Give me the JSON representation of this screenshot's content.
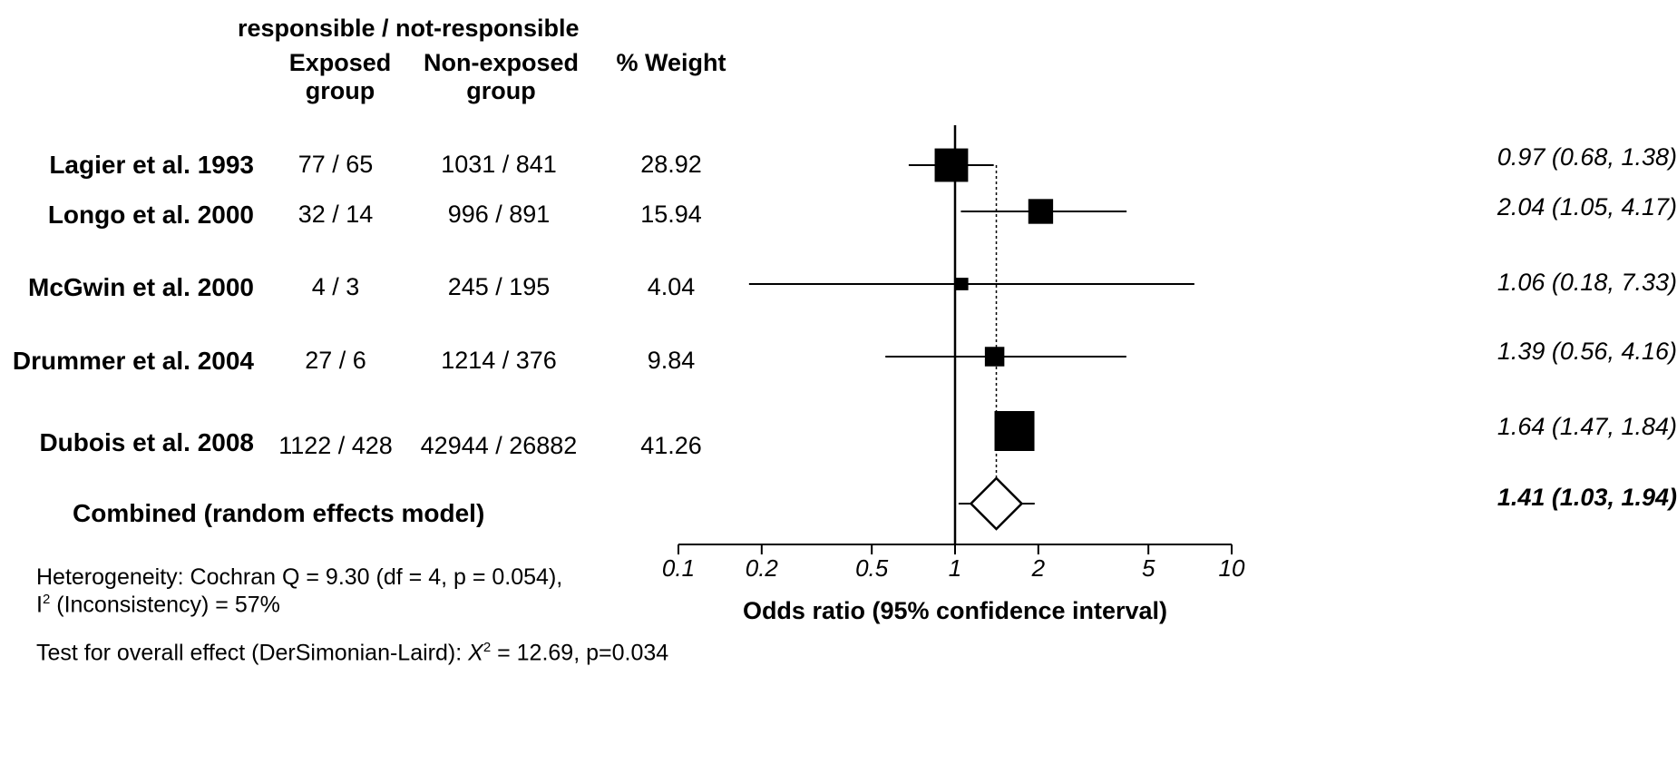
{
  "header": {
    "group_title": "responsible / not-responsible",
    "col_exposed_1": "Exposed",
    "col_exposed_2": "group",
    "col_nonexposed_1": "Non-exposed",
    "col_nonexposed_2": "group",
    "col_weight": "% Weight"
  },
  "studies": [
    {
      "name": "Lagier et al. 1993",
      "exposed": "77 / 65",
      "nonexposed": "1031 / 841",
      "weight": "28.92",
      "ci_text": "0.97 (0.68, 1.38)"
    },
    {
      "name": "Longo et al. 2000",
      "exposed": "32 / 14",
      "nonexposed": "996 / 891",
      "weight": "15.94",
      "ci_text": "2.04 (1.05, 4.17)"
    },
    {
      "name": "McGwin et al.  2000",
      "exposed": "4 / 3",
      "nonexposed": "245 / 195",
      "weight": "4.04",
      "ci_text": "1.06 (0.18, 7.33)"
    },
    {
      "name": "Drummer et al. 2004",
      "exposed": "27 / 6",
      "nonexposed": "1214 / 376",
      "weight": "9.84",
      "ci_text": "1.39 (0.56, 4.16)"
    },
    {
      "name": "Dubois et al. 2008",
      "exposed": "1122 / 428",
      "nonexposed": "42944 / 26882",
      "weight": "41.26",
      "ci_text": "1.64 (1.47, 1.84)"
    }
  ],
  "combined": {
    "label": "Combined (random effects model)",
    "ci_text": "1.41 (1.03, 1.94)"
  },
  "footer": {
    "heterogeneity_1": "Heterogeneity: Cochran Q = 9.30 (df = 4, p = 0.054),",
    "heterogeneity_2_pre": "I",
    "heterogeneity_2_sup": "2",
    "heterogeneity_2_post": " (Inconsistency) = 57%",
    "overall_pre": "Test for overall effect (DerSimonian-Laird): ",
    "overall_x": "X",
    "overall_sup": "2",
    "overall_post": " = 12.69, p=0.034"
  },
  "chart_data": {
    "type": "forest",
    "xscale": "log",
    "xlim": [
      0.1,
      10
    ],
    "xticks": [
      0.1,
      0.2,
      0.5,
      1,
      2,
      5,
      10
    ],
    "xtick_labels": [
      "0.1",
      "0.2",
      "0.5",
      "1",
      "2",
      "5",
      "10"
    ],
    "xlabel": "Odds ratio (95% confidence interval)",
    "reference_line": 1,
    "pooled_line": 1.41,
    "points": [
      {
        "or": 0.97,
        "lo": 0.68,
        "hi": 1.38,
        "weight": 28.92
      },
      {
        "or": 2.04,
        "lo": 1.05,
        "hi": 4.17,
        "weight": 15.94
      },
      {
        "or": 1.06,
        "lo": 0.18,
        "hi": 7.33,
        "weight": 4.04
      },
      {
        "or": 1.39,
        "lo": 0.56,
        "hi": 4.16,
        "weight": 9.84
      },
      {
        "or": 1.64,
        "lo": 1.47,
        "hi": 1.84,
        "weight": 41.26
      }
    ],
    "combined": {
      "or": 1.41,
      "lo": 1.03,
      "hi": 1.94
    }
  }
}
